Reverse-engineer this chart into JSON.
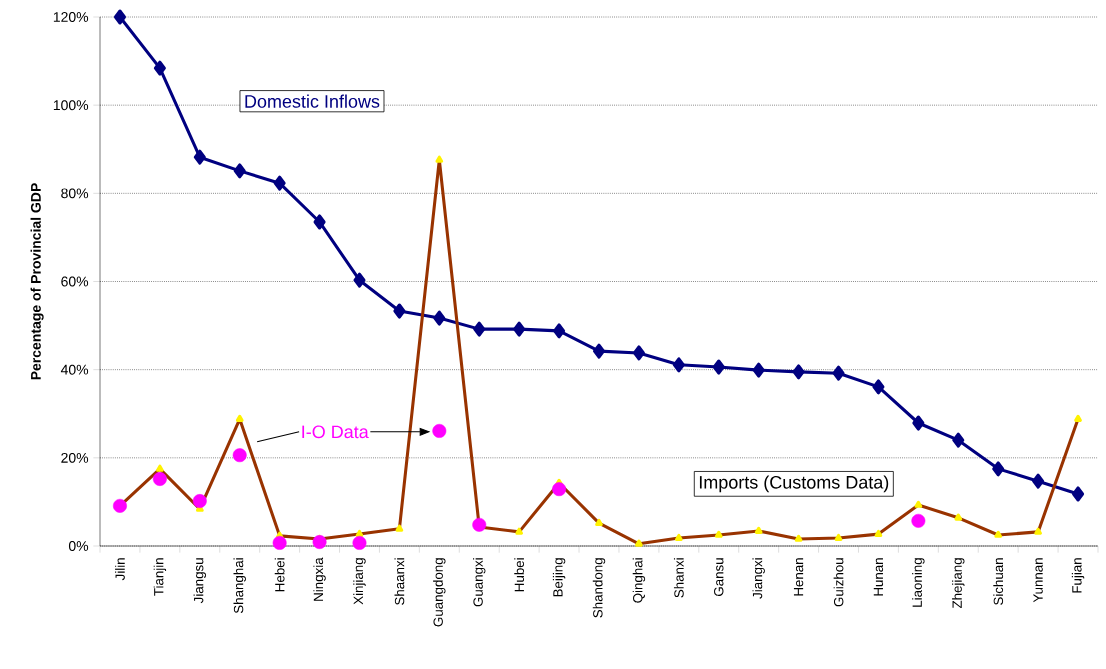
{
  "chart_data": {
    "type": "line",
    "ylabel": "Percentage of Provincial GDP",
    "categories": [
      "Jilin",
      "Tianjin",
      "Jiangsu",
      "Shanghai",
      "Hebei",
      "Ningxia",
      "Xinjiang",
      "Shaanxi",
      "Guangdong",
      "Guangxi",
      "Hubei",
      "Beijing",
      "Shandong",
      "Qinghai",
      "Shanxi",
      "Gansu",
      "Jiangxi",
      "Henan",
      "Guizhou",
      "Hunan",
      "Liaoning",
      "Zhejiang",
      "Sichuan",
      "Yunnan",
      "Fujian"
    ],
    "series": [
      {
        "name": "Domestic Inflows",
        "color": "#000080",
        "marker": "diamond",
        "values": [
          120,
          108.4,
          88.2,
          85.1,
          82.3,
          73.5,
          60.3,
          53.3,
          51.7,
          49.2,
          49.2,
          48.8,
          44.2,
          43.8,
          41.1,
          40.6,
          39.9,
          39.5,
          39.2,
          36.1,
          27.9,
          24.0,
          17.5,
          14.7,
          11.8
        ]
      },
      {
        "name": "Imports (Customs Data)",
        "color": "#993300",
        "marker": "triangle",
        "values": [
          9.1,
          17.5,
          8.4,
          28.8,
          2.3,
          1.6,
          2.7,
          3.9,
          87.6,
          4.3,
          3.2,
          14.3,
          5.2,
          0.5,
          1.8,
          2.5,
          3.4,
          1.6,
          1.8,
          2.7,
          9.3,
          6.4,
          2.5,
          3.2,
          28.8
        ]
      },
      {
        "name": "I-O Data",
        "type": "scatter",
        "color": "#ff00ff",
        "marker": "circle",
        "values": [
          9.1,
          15.2,
          10.2,
          20.6,
          0.7,
          0.9,
          0.7,
          null,
          26.1,
          4.8,
          null,
          12.9,
          null,
          null,
          null,
          null,
          null,
          null,
          null,
          null,
          5.7,
          null,
          null,
          null,
          null
        ]
      }
    ],
    "ylim": [
      0,
      120
    ],
    "yticks": [
      {
        "value": 0,
        "label": "0%"
      },
      {
        "value": 20,
        "label": "20%"
      },
      {
        "value": 40,
        "label": "40%"
      },
      {
        "value": 60,
        "label": "60%"
      },
      {
        "value": 80,
        "label": "80%"
      },
      {
        "value": 100,
        "label": "100%"
      },
      {
        "value": 120,
        "label": "120%"
      }
    ],
    "grid": "y"
  }
}
